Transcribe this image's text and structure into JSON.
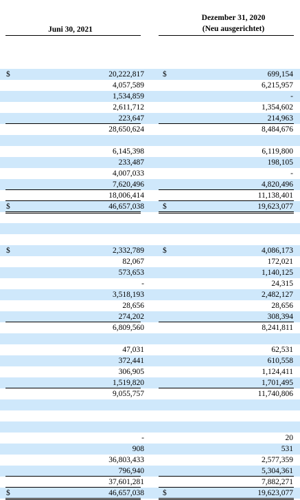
{
  "header": {
    "col1": "Juni 30, 2021",
    "col2_line1": "Dezember 31, 2020",
    "col2_line2": "(Neu ausgerichtet)"
  },
  "rows": [
    {
      "type": "blank",
      "shade": false
    },
    {
      "type": "blank",
      "shade": false
    },
    {
      "type": "data",
      "shade": true,
      "d1": "$",
      "v1": "20,222,817",
      "d2": "$",
      "v2": "699,154"
    },
    {
      "type": "data",
      "shade": false,
      "v1": "4,057,589",
      "v2": "6,215,957"
    },
    {
      "type": "data",
      "shade": true,
      "v1": "1,534,859",
      "v2": "-"
    },
    {
      "type": "data",
      "shade": false,
      "v1": "2,611,712",
      "v2": "1,354,602"
    },
    {
      "type": "data",
      "shade": true,
      "v1": "223,647",
      "v2": "214,963",
      "line": "single"
    },
    {
      "type": "data",
      "shade": false,
      "v1": "28,650,624",
      "v2": "8,484,676"
    },
    {
      "type": "blank",
      "shade": true
    },
    {
      "type": "data",
      "shade": false,
      "v1": "6,145,398",
      "v2": "6,119,800"
    },
    {
      "type": "data",
      "shade": true,
      "v1": "233,487",
      "v2": "198,105"
    },
    {
      "type": "data",
      "shade": false,
      "v1": "4,007,033",
      "v2": "-"
    },
    {
      "type": "data",
      "shade": true,
      "v1": "7,620,496",
      "v2": "4,820,496",
      "line": "single"
    },
    {
      "type": "data",
      "shade": false,
      "v1": "18,006,414",
      "v2": "11,138,401",
      "line": "single"
    },
    {
      "type": "data",
      "shade": true,
      "d1": "$",
      "v1": "46,657,038",
      "d2": "$",
      "v2": "19,623,077",
      "line": "double"
    },
    {
      "type": "blank",
      "shade": false
    },
    {
      "type": "blank",
      "shade": true
    },
    {
      "type": "blank",
      "shade": false
    },
    {
      "type": "data",
      "shade": true,
      "d1": "$",
      "v1": "2,332,789",
      "d2": "$",
      "v2": "4,086,173"
    },
    {
      "type": "data",
      "shade": false,
      "v1": "82,067",
      "v2": "172,021"
    },
    {
      "type": "data",
      "shade": true,
      "v1": "573,653",
      "v2": "1,140,125"
    },
    {
      "type": "data",
      "shade": false,
      "v1": "-",
      "v2": "24,315"
    },
    {
      "type": "data",
      "shade": true,
      "v1": "3,518,193",
      "v2": "2,482,127"
    },
    {
      "type": "data",
      "shade": false,
      "v1": "28,656",
      "v2": "28,656"
    },
    {
      "type": "data",
      "shade": true,
      "v1": "274,202",
      "v2": "308,394",
      "line": "single"
    },
    {
      "type": "data",
      "shade": false,
      "v1": "6,809,560",
      "v2": "8,241,811"
    },
    {
      "type": "blank",
      "shade": true
    },
    {
      "type": "data",
      "shade": false,
      "v1": "47,031",
      "v2": "62,531"
    },
    {
      "type": "data",
      "shade": true,
      "v1": "372,441",
      "v2": "610,558"
    },
    {
      "type": "data",
      "shade": false,
      "v1": "306,905",
      "v2": "1,124,411"
    },
    {
      "type": "data",
      "shade": true,
      "v1": "1,519,820",
      "v2": "1,701,495",
      "line": "single"
    },
    {
      "type": "data",
      "shade": false,
      "v1": "9,055,757",
      "v2": "11,740,806"
    },
    {
      "type": "blank",
      "shade": true
    },
    {
      "type": "blank",
      "shade": false
    },
    {
      "type": "blank",
      "shade": true
    },
    {
      "type": "data",
      "shade": false,
      "v1": "-",
      "v2": "20"
    },
    {
      "type": "data",
      "shade": true,
      "v1": "908",
      "v2": "531"
    },
    {
      "type": "data",
      "shade": false,
      "v1": "36,803,433",
      "v2": "2,577,359"
    },
    {
      "type": "data",
      "shade": true,
      "v1": "796,940",
      "v2": "5,304,361",
      "line": "single"
    },
    {
      "type": "data",
      "shade": false,
      "v1": "37,601,281",
      "v2": "7,882,271",
      "line": "single"
    },
    {
      "type": "data",
      "shade": true,
      "d1": "$",
      "v1": "46,657,038",
      "d2": "$",
      "v2": "19,623,077",
      "line": "double"
    }
  ]
}
